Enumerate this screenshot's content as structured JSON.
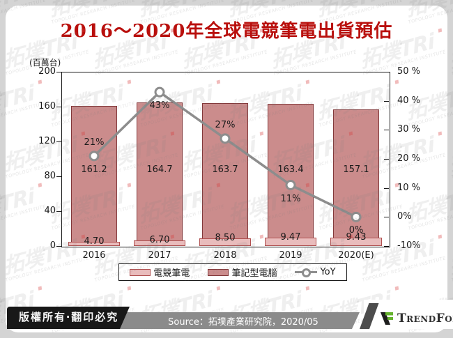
{
  "page": {
    "background": "#d4d4d4",
    "panel_background": "#ffffff"
  },
  "title": {
    "text": "2016～2020年全球電競筆電出貨預估",
    "color": "#b90f0c"
  },
  "chart_data": {
    "type": "combo",
    "categories": [
      "2016",
      "2017",
      "2018",
      "2019",
      "2020(E)"
    ],
    "series": [
      {
        "name": "電競筆電",
        "type": "bar",
        "axis": "left",
        "values": [
          4.7,
          6.7,
          8.5,
          9.47,
          9.43
        ],
        "labels": [
          "4.70",
          "6.70",
          "8.50",
          "9.47",
          "9.43"
        ],
        "fill": "#e9bcbc",
        "border": "#b05050"
      },
      {
        "name": "筆記型電腦",
        "type": "bar",
        "axis": "left",
        "values": [
          161.2,
          164.7,
          163.7,
          163.4,
          157.1
        ],
        "labels": [
          "161.2",
          "164.7",
          "163.7",
          "163.4",
          "157.1"
        ],
        "fill": "#cb8c8c",
        "border": "#82383a"
      },
      {
        "name": "YoY",
        "type": "line",
        "axis": "right",
        "values": [
          21,
          43,
          27,
          11,
          0
        ],
        "labels": [
          "21%",
          "43%",
          "27%",
          "11%",
          "0%"
        ],
        "label_side": [
          "above",
          "below",
          "above",
          "below",
          "below"
        ],
        "color": "#8d8d8d",
        "marker_fill": "#ffffff"
      }
    ],
    "y_left": {
      "unit_label": "(百萬台)",
      "min": 0,
      "max": 200,
      "tick_labels": [
        "200",
        "160",
        "120",
        "80",
        "40",
        "0"
      ]
    },
    "y_right": {
      "min": -10,
      "max": 50,
      "tick_labels": [
        "50 %",
        "40 %",
        "30 %",
        "20 %",
        "10 %",
        "0%",
        "-10%"
      ]
    },
    "legend": {
      "position": "bottom",
      "items": [
        "電競筆電",
        "筆記型電腦",
        "YoY"
      ]
    },
    "grid": "off"
  },
  "footer": {
    "copyright": "版權所有‧翻印必究",
    "source": "Source：拓墣產業研究院，2020/05",
    "brand": "TrendForce",
    "brand_green": "#65b32e",
    "brand_dark": "#1e1e1e",
    "bar_color": "#8b8b8b",
    "box_color": "#181818"
  },
  "watermark": {
    "big": "拓墣TRi",
    "small": "TOPOLOGY RESEARCH INSTITUTE",
    "text_color": "rgba(125,125,125,0.12)",
    "small_color": "rgba(125,125,125,0.20)",
    "dot_color": "rgba(215,60,60,0.35)"
  }
}
